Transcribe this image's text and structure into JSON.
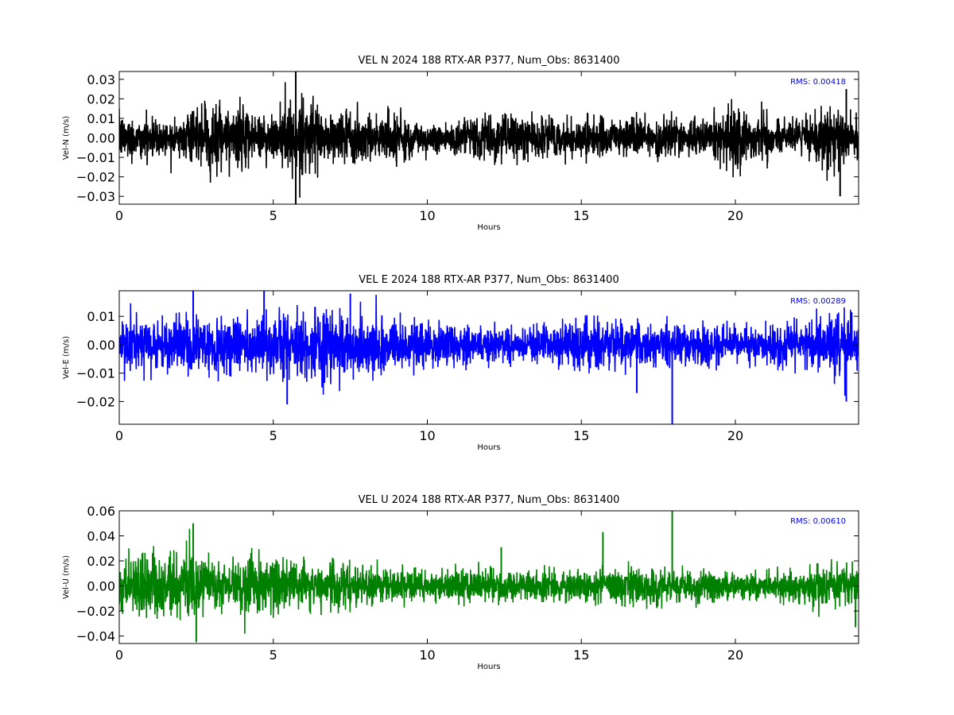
{
  "chart_data": [
    {
      "type": "line",
      "title": "VEL N 2024 188 RTX-AR  P377, Num_Obs: 8631400",
      "xlabel": "Hours",
      "ylabel": "Vel-N (m/s)",
      "xlim": [
        0,
        24
      ],
      "ylim": [
        -0.034,
        0.034
      ],
      "xticks": [
        0,
        5,
        10,
        15,
        20
      ],
      "yticks": [
        -0.03,
        -0.02,
        -0.01,
        0.0,
        0.01,
        0.02,
        0.03
      ],
      "ytick_labels": [
        "−0.03",
        "−0.02",
        "−0.01",
        "0.00",
        "0.01",
        "0.02",
        "0.03"
      ],
      "color": "#000000",
      "annotation": "RMS:  0.00418",
      "rms": 0.00418,
      "envelope_hours": [
        0,
        1,
        2,
        2.5,
        3,
        3.5,
        4,
        4.5,
        5,
        5.5,
        6,
        7,
        8,
        9,
        10,
        11,
        12,
        13,
        14,
        15,
        16,
        17,
        18,
        19,
        19.5,
        20,
        21,
        21.5,
        22,
        23,
        24
      ],
      "envelope_amplitude": [
        0.012,
        0.011,
        0.009,
        0.014,
        0.018,
        0.019,
        0.017,
        0.012,
        0.013,
        0.022,
        0.016,
        0.014,
        0.013,
        0.013,
        0.009,
        0.009,
        0.013,
        0.011,
        0.01,
        0.01,
        0.011,
        0.01,
        0.011,
        0.009,
        0.016,
        0.017,
        0.012,
        0.006,
        0.01,
        0.016,
        0.014
      ],
      "spikes": [
        {
          "x": 5.73,
          "y": 0.035
        },
        {
          "x": 5.73,
          "y": -0.034
        },
        {
          "x": 23.4,
          "y": -0.03
        },
        {
          "x": 23.6,
          "y": 0.025
        }
      ]
    },
    {
      "type": "line",
      "title": "VEL E 2024 188 RTX-AR  P377, Num_Obs: 8631400",
      "xlabel": "Hours",
      "ylabel": "Vel-E (m/s)",
      "xlim": [
        0,
        24
      ],
      "ylim": [
        -0.028,
        0.019
      ],
      "xticks": [
        0,
        5,
        10,
        15,
        20
      ],
      "yticks": [
        -0.02,
        -0.01,
        0.0,
        0.01
      ],
      "ytick_labels": [
        "−0.02",
        "−0.01",
        "0.00",
        "0.01"
      ],
      "color": "#0000ff",
      "annotation": "RMS:  0.00289",
      "rms": 0.00289,
      "envelope_hours": [
        0,
        1,
        2,
        3,
        4,
        5,
        5.5,
        6,
        7,
        7.5,
        8,
        9,
        10,
        11,
        12,
        13,
        14,
        15,
        15.5,
        16,
        17,
        18,
        19,
        20,
        21,
        22,
        23,
        23.5,
        24
      ],
      "envelope_amplitude": [
        0.009,
        0.01,
        0.011,
        0.011,
        0.01,
        0.011,
        0.012,
        0.01,
        0.014,
        0.012,
        0.01,
        0.009,
        0.008,
        0.007,
        0.007,
        0.006,
        0.007,
        0.009,
        0.01,
        0.008,
        0.008,
        0.008,
        0.007,
        0.006,
        0.008,
        0.008,
        0.01,
        0.012,
        0.01
      ],
      "spikes": [
        {
          "x": 2.4,
          "y": 0.019
        },
        {
          "x": 4.7,
          "y": 0.019
        },
        {
          "x": 5.45,
          "y": -0.021
        },
        {
          "x": 7.5,
          "y": 0.018
        },
        {
          "x": 16.8,
          "y": -0.017
        },
        {
          "x": 17.95,
          "y": -0.028
        },
        {
          "x": 23.6,
          "y": -0.02
        }
      ]
    },
    {
      "type": "line",
      "title": "VEL U 2024 188 RTX-AR  P377, Num_Obs: 8631400",
      "xlabel": "Hours",
      "ylabel": "Vel-U (m/s)",
      "xlim": [
        0,
        24
      ],
      "ylim": [
        -0.046,
        0.06
      ],
      "xticks": [
        0,
        5,
        10,
        15,
        20
      ],
      "yticks": [
        -0.04,
        -0.02,
        0.0,
        0.02,
        0.04,
        0.06
      ],
      "ytick_labels": [
        "−0.04",
        "−0.02",
        "0.00",
        "0.02",
        "0.04",
        "0.06"
      ],
      "color": "#008000",
      "annotation": "RMS:  0.00610",
      "rms": 0.0061,
      "envelope_hours": [
        0,
        0.5,
        1,
        1.5,
        2,
        2.5,
        3,
        3.5,
        4,
        4.5,
        5,
        5.5,
        6,
        6.5,
        7,
        8,
        9,
        10,
        11,
        12,
        13,
        14,
        15,
        16,
        17,
        18,
        19,
        20,
        21,
        22,
        23,
        24
      ],
      "envelope_amplitude": [
        0.02,
        0.025,
        0.028,
        0.024,
        0.028,
        0.032,
        0.026,
        0.016,
        0.022,
        0.027,
        0.024,
        0.018,
        0.017,
        0.02,
        0.019,
        0.015,
        0.014,
        0.013,
        0.014,
        0.013,
        0.012,
        0.012,
        0.013,
        0.015,
        0.016,
        0.014,
        0.013,
        0.01,
        0.012,
        0.013,
        0.017,
        0.02
      ],
      "spikes": [
        {
          "x": 2.4,
          "y": 0.05
        },
        {
          "x": 2.5,
          "y": -0.045
        },
        {
          "x": 15.7,
          "y": 0.043
        },
        {
          "x": 17.95,
          "y": 0.06
        },
        {
          "x": 12.4,
          "y": 0.031
        },
        {
          "x": 23.9,
          "y": -0.033
        }
      ]
    }
  ]
}
